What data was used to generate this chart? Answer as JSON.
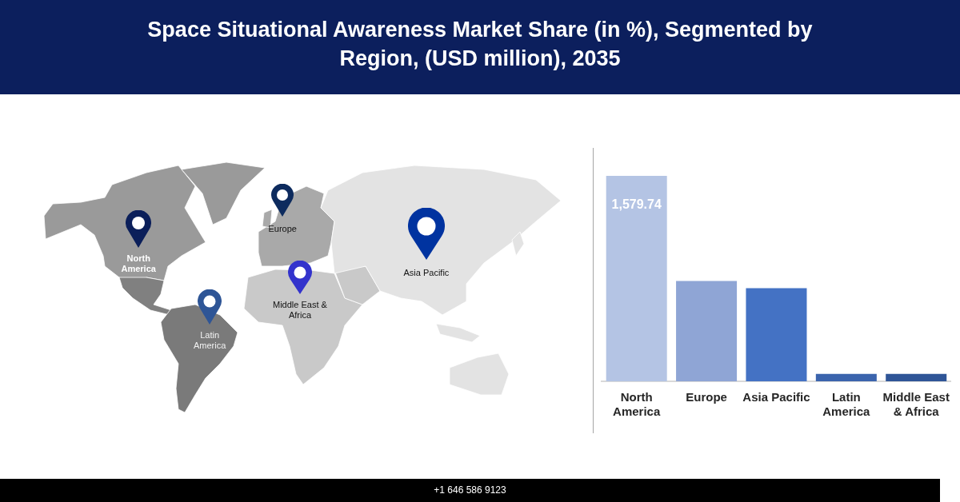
{
  "chart_data": {
    "type": "bar",
    "title": "Space Situational Awareness Market Share (in %), Segmented by Region, (USD million), 2035",
    "categories": [
      "North America",
      "Europe",
      "Asia Pacific",
      "Latin America",
      "Middle East & Africa"
    ],
    "values": [
      1579.74,
      771,
      716,
      57,
      57
    ],
    "colors": [
      "#b4c4e4",
      "#8fa5d5",
      "#4472c4",
      "#3b64ad",
      "#2f5597"
    ],
    "value_labels": [
      "1,579.74",
      null,
      null,
      null,
      null
    ],
    "annotations": [
      "+1 646 586 9123"
    ],
    "grid": false,
    "legend": false
  }
}
